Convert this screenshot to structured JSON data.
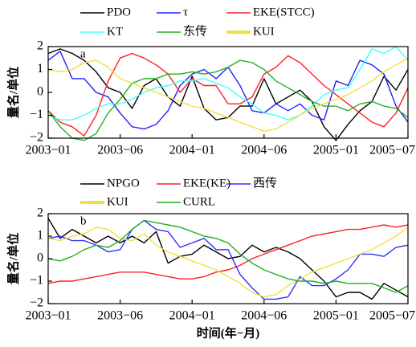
{
  "chart_data": [
    {
      "type": "line",
      "annotation": "a",
      "ylabel": "量名/单位",
      "x": [
        0,
        1,
        2,
        3,
        4,
        5,
        6,
        7,
        8,
        9,
        10,
        11,
        12,
        13,
        14,
        15,
        16,
        17,
        18,
        19,
        20,
        21,
        22,
        23,
        24,
        25,
        26,
        27,
        28,
        29,
        30
      ],
      "xlim": [
        0,
        30
      ],
      "xticks": [
        {
          "value": 0,
          "label": "2003−01"
        },
        {
          "value": 6,
          "label": "2003−06"
        },
        {
          "value": 12,
          "label": "2004−01"
        },
        {
          "value": 18,
          "label": "2004−06"
        },
        {
          "value": 24,
          "label": "2005−01"
        },
        {
          "value": 30,
          "label": "2005−07"
        }
      ],
      "ylim": [
        -2,
        2
      ],
      "yticks": [
        2,
        1,
        0,
        {
          "value": -1,
          "label": "−1"
        },
        {
          "value": -2,
          "label": "−2"
        }
      ],
      "series": [
        {
          "name": "PDO",
          "color": "#000000",
          "values": [
            1.7,
            1.9,
            1.7,
            1.4,
            0.9,
            0.2,
            0.0,
            -0.7,
            0.3,
            0.6,
            -0.2,
            -0.6,
            0.7,
            -0.7,
            -1.2,
            -1.1,
            -0.6,
            -0.6,
            0.6,
            -0.5,
            -0.2,
            0.1,
            -0.4,
            -1.5,
            -2.1,
            -1.4,
            -0.8,
            -0.4,
            0.7,
            0.1,
            1.0
          ]
        },
        {
          "name": "τ",
          "color": "#2020ff",
          "values": [
            1.4,
            1.8,
            0.6,
            0.6,
            0.0,
            -0.2,
            -0.9,
            -1.5,
            -1.6,
            -1.4,
            -0.8,
            0.3,
            0.8,
            1.0,
            0.6,
            1.1,
            0.3,
            -0.8,
            -0.9,
            -0.5,
            -0.8,
            -0.5,
            -1.0,
            -1.2,
            0.5,
            0.3,
            1.4,
            1.2,
            0.8,
            -0.6,
            -1.3
          ]
        },
        {
          "name": "EKE(STCC)",
          "color": "#ff2020",
          "values": [
            -0.8,
            -1.3,
            -1.5,
            -1.9,
            -1.0,
            0.5,
            1.5,
            1.7,
            1.5,
            1.2,
            0.8,
            0.0,
            0.6,
            0.3,
            0.3,
            -0.5,
            -0.5,
            -0.2,
            0.8,
            1.1,
            1.6,
            1.3,
            0.8,
            0.3,
            -0.1,
            -0.5,
            -0.9,
            -1.3,
            -1.5,
            -0.9,
            0.2
          ]
        },
        {
          "name": "KT",
          "color": "#40ffff",
          "values": [
            -1.0,
            -1.2,
            -1.2,
            -1.0,
            -0.7,
            -0.5,
            -0.5,
            -0.3,
            0.0,
            0.2,
            0.3,
            0.5,
            0.5,
            0.6,
            0.4,
            0.2,
            -0.2,
            -0.5,
            -0.9,
            -1.0,
            -1.2,
            -1.0,
            -0.6,
            -0.1,
            0.1,
            0.2,
            1.0,
            1.9,
            1.7,
            2.0,
            1.4
          ]
        },
        {
          "name": "东传",
          "color": "#20b020",
          "values": [
            -0.8,
            -1.5,
            -2.0,
            -2.1,
            -1.8,
            -0.9,
            -0.3,
            0.4,
            0.6,
            0.6,
            0.8,
            0.8,
            0.9,
            0.8,
            0.9,
            1.1,
            1.4,
            1.3,
            1.0,
            0.5,
            0.2,
            -0.1,
            -0.4,
            -0.6,
            -0.6,
            -0.8,
            -0.5,
            -0.4,
            -0.6,
            -0.7,
            -1.1
          ]
        },
        {
          "name": "KUI",
          "color": "#f0e040",
          "values": [
            1.0,
            0.9,
            1.0,
            1.3,
            1.4,
            1.1,
            0.6,
            0.4,
            0.2,
            0.0,
            -0.2,
            -0.4,
            -0.6,
            -0.7,
            -0.9,
            -1.1,
            -1.3,
            -1.5,
            -1.7,
            -1.6,
            -1.3,
            -1.0,
            -0.7,
            -0.5,
            -0.3,
            -0.1,
            0.2,
            0.5,
            0.9,
            1.2,
            1.5
          ]
        }
      ]
    },
    {
      "type": "line",
      "annotation": "b",
      "ylabel": "量名/单位",
      "xlabel": "时间(年−月)",
      "x": [
        0,
        1,
        2,
        3,
        4,
        5,
        6,
        7,
        8,
        9,
        10,
        11,
        12,
        13,
        14,
        15,
        16,
        17,
        18,
        19,
        20,
        21,
        22,
        23,
        24,
        25,
        26,
        27,
        28,
        29,
        30
      ],
      "xlim": [
        0,
        30
      ],
      "xticks": [
        {
          "value": 0,
          "label": "2003−01"
        },
        {
          "value": 6,
          "label": "2003−06"
        },
        {
          "value": 12,
          "label": "2004−01"
        },
        {
          "value": 18,
          "label": "2004−06"
        },
        {
          "value": 24,
          "label": "2005−01"
        },
        {
          "value": 30,
          "label": "2005−07"
        }
      ],
      "ylim": [
        -2,
        2
      ],
      "yticks": [
        2,
        1,
        0,
        {
          "value": -1,
          "label": "−1"
        },
        {
          "value": -2,
          "label": "−2"
        }
      ],
      "series": [
        {
          "name": "NPGO",
          "color": "#000000",
          "values": [
            1.8,
            0.9,
            1.3,
            1.0,
            0.7,
            1.0,
            0.7,
            1.0,
            0.7,
            1.2,
            -0.2,
            0.1,
            0.2,
            0.6,
            0.3,
            0.0,
            0.1,
            0.6,
            0.3,
            0.5,
            0.3,
            0.0,
            -0.5,
            -1.0,
            -1.7,
            -1.5,
            -1.5,
            -1.8,
            -1.1,
            -1.4,
            -1.7
          ]
        },
        {
          "name": "EKE(KE)",
          "color": "#ff2020",
          "values": [
            -1.1,
            -1.0,
            -1.0,
            -0.9,
            -0.8,
            -0.7,
            -0.6,
            -0.6,
            -0.6,
            -0.7,
            -0.8,
            -0.9,
            -0.9,
            -0.8,
            -0.6,
            -0.5,
            -0.3,
            0.0,
            0.2,
            0.4,
            0.6,
            0.8,
            1.0,
            1.1,
            1.2,
            1.3,
            1.3,
            1.4,
            1.5,
            1.4,
            1.5
          ]
        },
        {
          "name": "西传",
          "color": "#3030ff",
          "values": [
            0.9,
            1.0,
            0.8,
            0.8,
            0.6,
            0.3,
            0.4,
            1.3,
            1.7,
            1.3,
            1.2,
            0.5,
            0.7,
            0.9,
            0.4,
            0.4,
            -0.7,
            -1.3,
            -1.8,
            -1.8,
            -1.7,
            -0.8,
            -1.2,
            -1.2,
            -0.9,
            -0.5,
            0.2,
            0.2,
            0.1,
            0.5,
            0.6
          ]
        },
        {
          "name": "KUI",
          "color": "#f0e040",
          "values": [
            0.9,
            0.8,
            1.0,
            1.1,
            1.4,
            1.3,
            0.9,
            0.8,
            1.1,
            0.6,
            0.3,
            0.1,
            -0.1,
            -0.3,
            -0.5,
            -0.8,
            -1.1,
            -1.5,
            -1.7,
            -1.6,
            -1.2,
            -0.9,
            -0.6,
            -0.4,
            -0.2,
            0.0,
            0.2,
            0.4,
            0.7,
            1.0,
            1.4
          ]
        },
        {
          "name": "CURL",
          "color": "#20b020",
          "values": [
            0.0,
            -0.1,
            0.1,
            0.4,
            0.6,
            0.5,
            0.8,
            1.3,
            1.7,
            1.6,
            1.5,
            1.4,
            1.2,
            1.0,
            0.9,
            0.7,
            0.2,
            -0.2,
            -0.5,
            -0.7,
            -0.9,
            -1.0,
            -1.0,
            -1.1,
            -1.0,
            -1.1,
            -1.1,
            -1.1,
            -1.3,
            -1.5,
            -1.2
          ]
        }
      ]
    }
  ]
}
